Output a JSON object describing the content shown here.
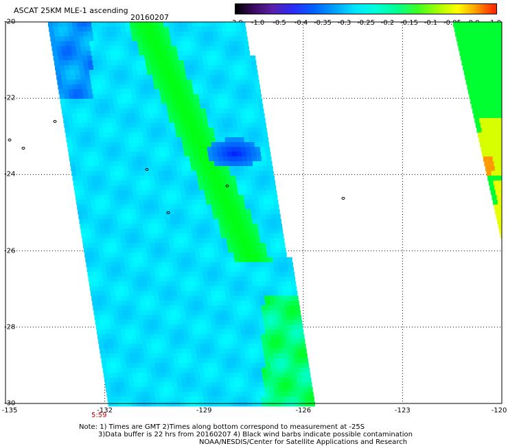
{
  "header": {
    "title": "ASCAT 25KM MLE-1 ascending",
    "date": "20160207"
  },
  "colorbar": {
    "ticks": [
      "-3.0",
      "-1.0",
      "-0.5",
      "-0.4",
      "-0.35",
      "-0.3",
      "-0.25",
      "-0.2",
      "-0.15",
      "-0.1",
      "-0.05",
      "0.0",
      "1.0"
    ]
  },
  "axes": {
    "lat_labels": [
      "-20",
      "-22",
      "-24",
      "-26",
      "-28",
      "-30"
    ],
    "lon_labels": [
      "-135",
      "-132",
      "-129",
      "-126",
      "-123",
      "-120"
    ],
    "lat_range": [
      -30,
      -20
    ],
    "lon_range": [
      -135,
      -120
    ]
  },
  "time_label": "5:59",
  "notes": {
    "line1": "Note: 1) Times are GMT 2)Times along bottom correspond to measurement at -25S",
    "line2": "3)Data buffer is 22 hrs from 20160207 4) Black wind barbs indicate possible contamination",
    "line3": "NOAA/NESDIS/Center for Satellite Applications and Research"
  },
  "colors": {
    "low": "#0040ff",
    "mid": "#00ffff",
    "high": "#00ff00",
    "warm": "#ffff00"
  }
}
